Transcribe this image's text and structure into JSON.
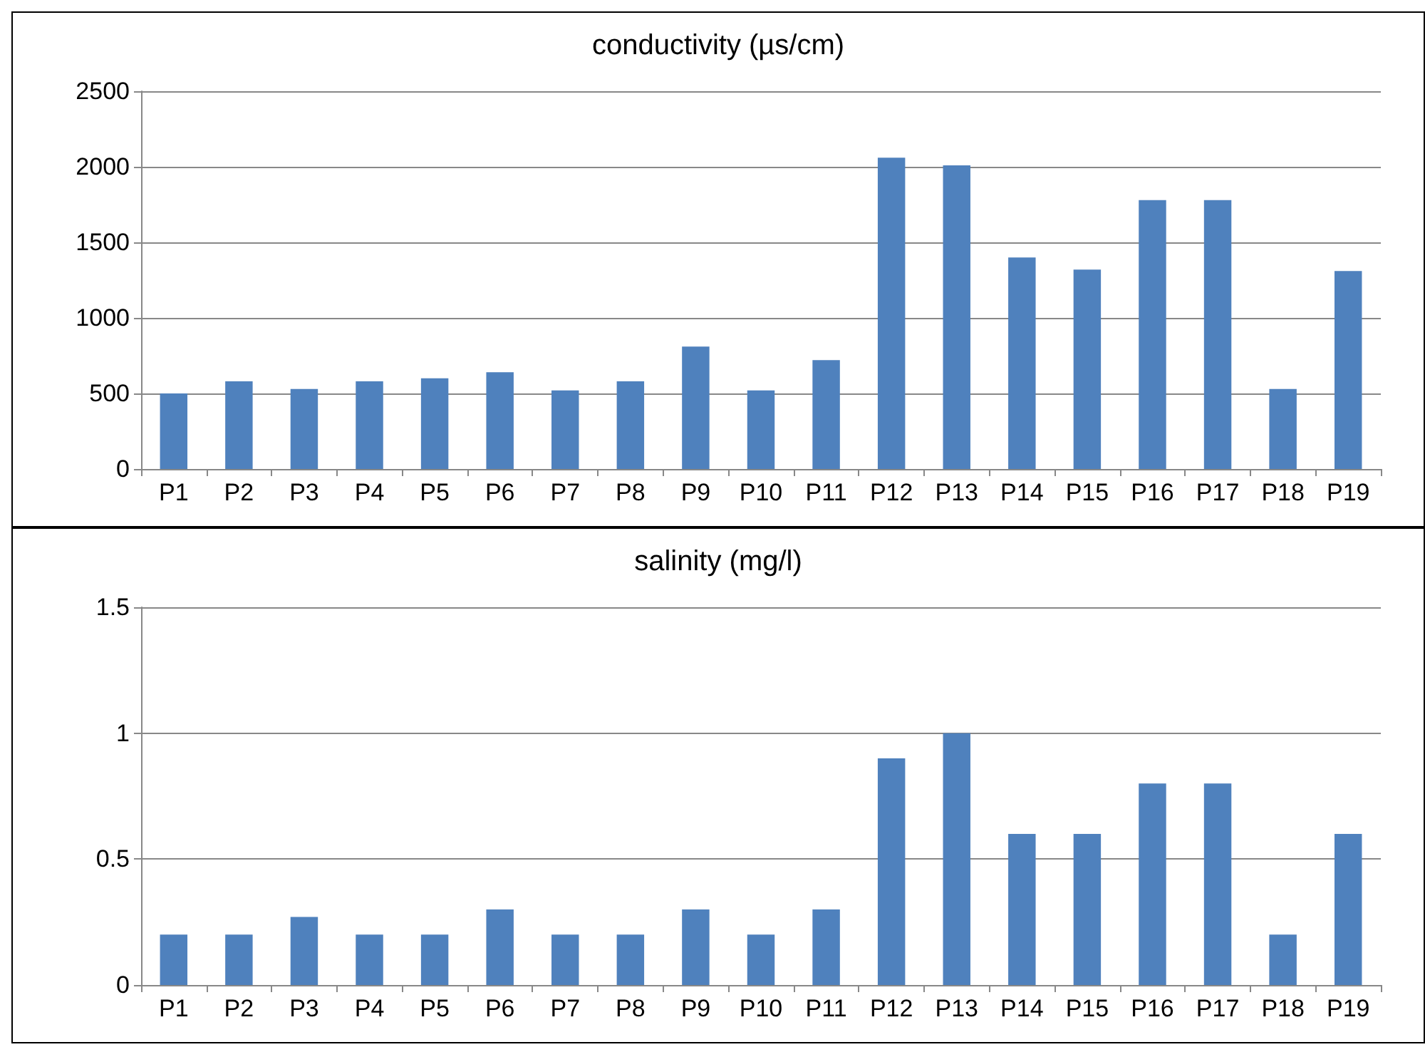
{
  "chart_data": [
    {
      "type": "bar",
      "title": "conductivity (µs/cm)",
      "categories": [
        "P1",
        "P2",
        "P3",
        "P4",
        "P5",
        "P6",
        "P7",
        "P8",
        "P9",
        "P10",
        "P11",
        "P12",
        "P13",
        "P14",
        "P15",
        "P16",
        "P17",
        "P18",
        "P19"
      ],
      "values": [
        500,
        580,
        530,
        580,
        600,
        640,
        520,
        580,
        810,
        520,
        720,
        2060,
        2010,
        1400,
        1320,
        1780,
        1780,
        530,
        1310
      ],
      "color": "#4f81bd",
      "ylim": [
        0,
        2500
      ],
      "yticks": [
        0,
        500,
        1000,
        1500,
        2000,
        2500
      ],
      "grid": "y"
    },
    {
      "type": "bar",
      "title": "salinity (mg/l)",
      "categories": [
        "P1",
        "P2",
        "P3",
        "P4",
        "P5",
        "P6",
        "P7",
        "P8",
        "P9",
        "P10",
        "P11",
        "P12",
        "P13",
        "P14",
        "P15",
        "P16",
        "P17",
        "P18",
        "P19"
      ],
      "values": [
        0.2,
        0.2,
        0.27,
        0.2,
        0.2,
        0.3,
        0.2,
        0.2,
        0.3,
        0.2,
        0.3,
        0.9,
        1.0,
        0.6,
        0.6,
        0.8,
        0.8,
        0.2,
        0.6
      ],
      "color": "#4f81bd",
      "ylim": [
        0,
        1.5
      ],
      "yticks": [
        0,
        0.5,
        1,
        1.5
      ],
      "grid": "y"
    }
  ]
}
